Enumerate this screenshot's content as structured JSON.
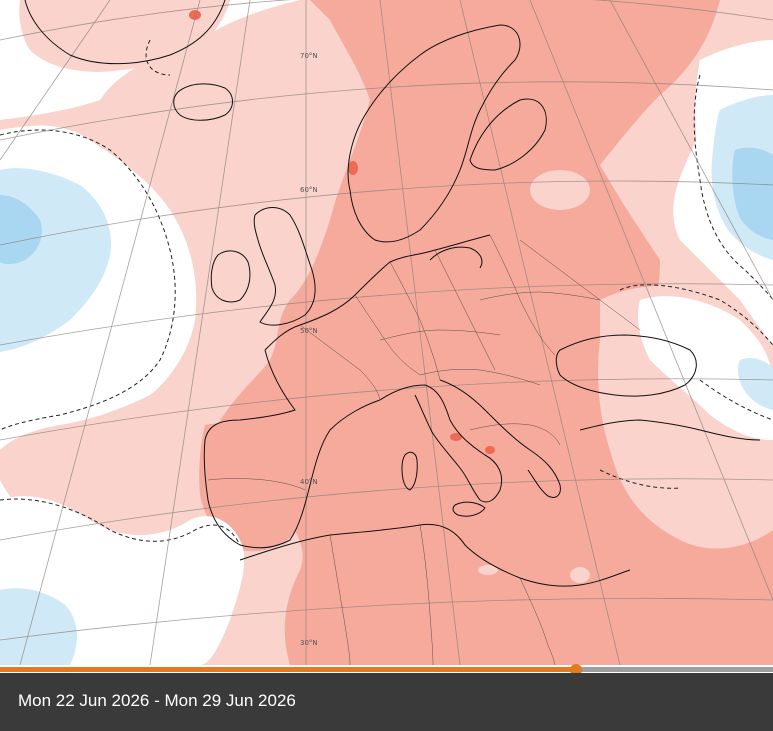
{
  "map": {
    "latitude_labels": [
      "70°N",
      "60°N",
      "50°N",
      "40°N",
      "30°N"
    ],
    "colors": {
      "anomaly_light": "#f9d3cc",
      "anomaly_medium": "#f6aa9b",
      "anomaly_strong": "#ef6a55",
      "anomaly_cold_light": "#cfe9f6",
      "anomaly_cold": "#a9d6f0",
      "background": "#ffffff"
    }
  },
  "timeline": {
    "progress": 0.745,
    "accent": "#e07b1f",
    "track": "#9e9e9e"
  },
  "footer": {
    "date_range": "Mon 22 Jun 2026 - Mon 29 Jun 2026"
  }
}
